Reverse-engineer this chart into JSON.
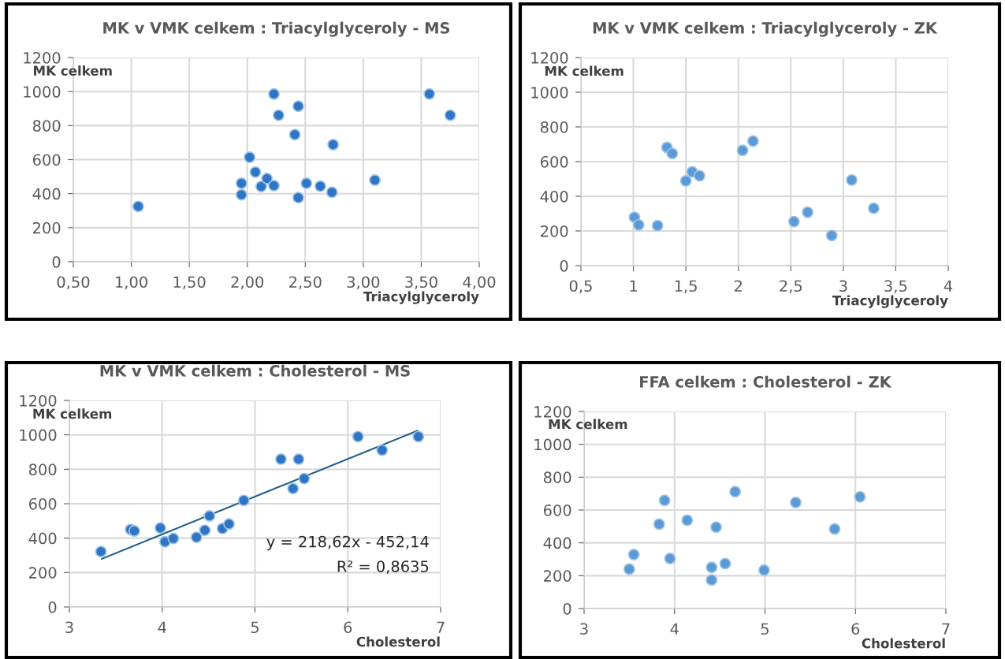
{
  "chart_data": [
    {
      "type": "scatter",
      "title": "MK v VMK celkem : Triacylglyceroly - MS",
      "xlabel": "Triacylglyceroly",
      "ylabel": "MK celkem",
      "series": [
        {
          "color": "#2e75c6",
          "x": [
            1.06,
            1.95,
            1.95,
            2.02,
            2.07,
            2.12,
            2.17,
            2.23,
            2.23,
            2.27,
            2.41,
            2.44,
            2.44,
            2.51,
            2.63,
            2.74,
            2.73,
            3.1,
            3.57,
            3.75
          ],
          "values": [
            325,
            461,
            394,
            614,
            527,
            442,
            489,
            986,
            447,
            861,
            747,
            914,
            377,
            461,
            444,
            688,
            408,
            480,
            986,
            861
          ]
        }
      ],
      "xlim": [
        0.5,
        4.0
      ],
      "xticks": [
        {
          "value": 0.5,
          "label": "0,50"
        },
        {
          "value": 1.0,
          "label": "1,00"
        },
        {
          "value": 1.5,
          "label": "1,50"
        },
        {
          "value": 2.0,
          "label": "2,00"
        },
        {
          "value": 2.5,
          "label": "2,50"
        },
        {
          "value": 3.0,
          "label": "3,00"
        },
        {
          "value": 3.5,
          "label": "3,50"
        },
        {
          "value": 4.0,
          "label": "4,00"
        }
      ],
      "ylim": [
        0,
        1200
      ],
      "yticks": [
        0,
        200,
        400,
        600,
        800,
        1000,
        1200
      ],
      "grid": true,
      "marker": "circle"
    },
    {
      "type": "scatter",
      "title": "MK v VMK celkem : Triacylglyceroly - ZK",
      "xlabel": "Triacylglyceroly",
      "ylabel": "MK celkem",
      "series": [
        {
          "color": "#5b9bd5",
          "x": [
            1.01,
            1.05,
            1.23,
            1.32,
            1.37,
            1.5,
            1.56,
            1.63,
            2.04,
            2.14,
            2.53,
            2.66,
            2.89,
            3.08,
            3.29
          ],
          "values": [
            279,
            235,
            231,
            682,
            647,
            489,
            541,
            518,
            665,
            718,
            254,
            308,
            174,
            494,
            331
          ]
        }
      ],
      "xlim": [
        0.5,
        4
      ],
      "xticks": [
        {
          "value": 0.5,
          "label": "0,5"
        },
        1,
        {
          "value": 1.5,
          "label": "1,5"
        },
        2,
        {
          "value": 2.5,
          "label": "2,5"
        },
        3,
        {
          "value": 3.5,
          "label": "3,5"
        },
        4
      ],
      "ylim": [
        0,
        1200
      ],
      "yticks": [
        0,
        200,
        400,
        600,
        800,
        1000,
        1200
      ],
      "grid": true,
      "marker": "circle"
    },
    {
      "type": "scatter",
      "title": "MK v VMK celkem : Cholesterol - MS",
      "xlabel": "Cholesterol",
      "ylabel": "MK celkem",
      "series": [
        {
          "color": "#2e75c6",
          "x": [
            3.34,
            3.66,
            3.7,
            3.98,
            4.03,
            4.12,
            4.37,
            4.46,
            4.51,
            4.65,
            4.72,
            4.88,
            5.28,
            5.41,
            5.47,
            5.53,
            6.11,
            6.37,
            6.76
          ],
          "values": [
            322,
            450,
            442,
            459,
            379,
            398,
            405,
            446,
            529,
            456,
            482,
            619,
            859,
            688,
            859,
            746,
            990,
            911,
            990
          ]
        },
        {
          "type": "line",
          "color": "#1f5f8b",
          "x": [
            3.35,
            6.75
          ],
          "values": [
            280,
            1024
          ],
          "marker": "none"
        }
      ],
      "annotations": [
        "y = 218,62x - 452,14",
        "R² = 0,8635"
      ],
      "xlim": [
        3,
        7
      ],
      "xticks": [
        3,
        4,
        5,
        6,
        7
      ],
      "ylim": [
        0,
        1200
      ],
      "yticks": [
        0,
        200,
        400,
        600,
        800,
        1000,
        1200
      ],
      "grid": true,
      "marker": "circle"
    },
    {
      "type": "scatter",
      "title": "FFA celkem : Cholesterol - ZK",
      "xlabel": "Cholesterol",
      "ylabel": "MK celkem",
      "series": [
        {
          "color": "#5b9bd5",
          "x": [
            3.5,
            3.55,
            3.83,
            3.89,
            3.95,
            4.14,
            4.41,
            4.41,
            4.46,
            4.56,
            4.67,
            4.99,
            5.34,
            5.77,
            6.05
          ],
          "values": [
            240,
            329,
            514,
            659,
            305,
            538,
            251,
            174,
            496,
            274,
            712,
            234,
            646,
            485,
            680
          ]
        }
      ],
      "xlim": [
        3,
        7
      ],
      "xticks": [
        3,
        4,
        5,
        6,
        7
      ],
      "ylim": [
        0,
        1200
      ],
      "yticks": [
        0,
        200,
        400,
        600,
        800,
        1000,
        1200
      ],
      "grid": true,
      "marker": "circle"
    }
  ]
}
